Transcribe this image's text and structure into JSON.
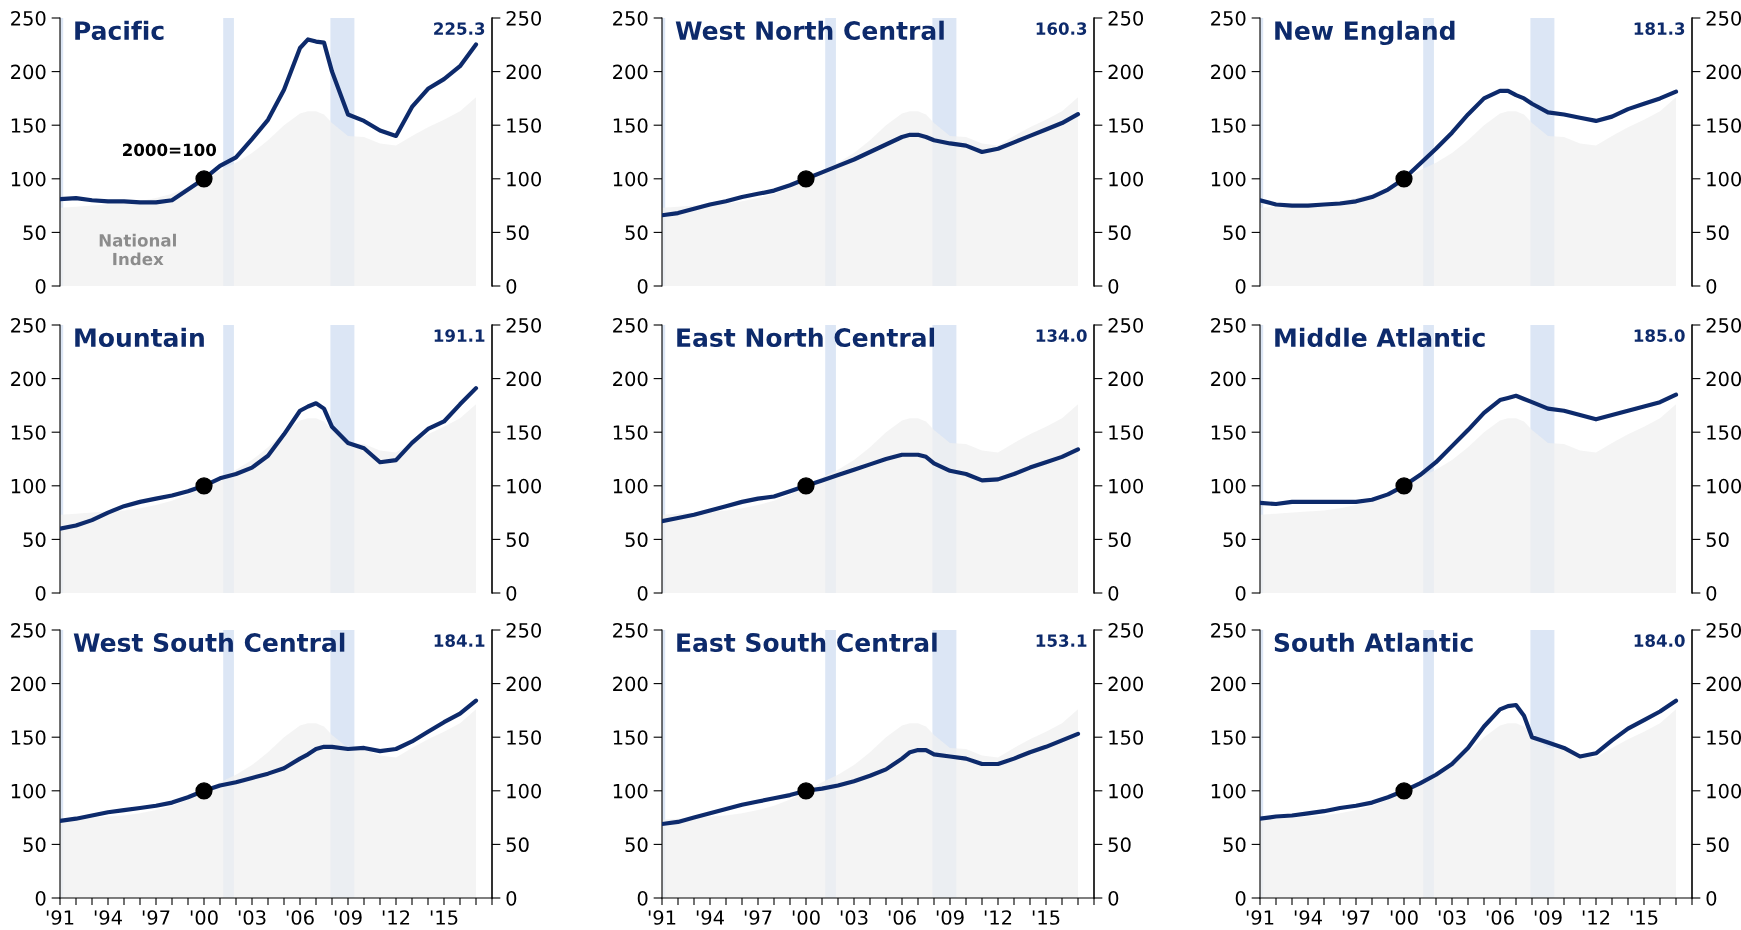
{
  "chart_data": [
    {
      "type": "line",
      "title": "Pacific",
      "x": [
        1991,
        1992,
        1993,
        1994,
        1995,
        1996,
        1997,
        1998,
        1999,
        2000,
        2001,
        2002,
        2003,
        2004,
        2005,
        2006,
        2006.5,
        2007,
        2007.5,
        2008,
        2009,
        2010,
        2011,
        2012,
        2013,
        2014,
        2015,
        2016,
        2017
      ],
      "xlim": [
        1991,
        2018
      ],
      "ylim": [
        0,
        250
      ],
      "yticks": [
        0,
        50,
        100,
        150,
        200,
        250
      ],
      "y2lim": [
        0,
        250
      ],
      "y2ticks": [
        0,
        50,
        100,
        150,
        200,
        250
      ],
      "tick_labels": "y",
      "series": [
        {
          "type": "area",
          "name": "National Index",
          "color": "#f0f0f0",
          "values": [
            73,
            74,
            75,
            76,
            77,
            79,
            82,
            86,
            92,
            100,
            108,
            115,
            124,
            136,
            150,
            161,
            163,
            163,
            160,
            152,
            140,
            139,
            133,
            131,
            140,
            148,
            155,
            163,
            176
          ]
        },
        {
          "type": "line",
          "color": "#0d2a6b",
          "values": [
            81,
            82,
            80,
            79,
            79,
            78,
            78,
            80,
            90,
            100,
            112,
            120,
            137,
            155,
            183,
            222,
            230,
            228,
            227,
            200,
            160,
            154,
            145,
            140,
            167,
            184,
            193,
            205,
            225.3
          ]
        },
        {
          "type": "scatter",
          "color": "#000000",
          "marker": "circle",
          "values": [
            null,
            null,
            null,
            null,
            null,
            null,
            null,
            null,
            null,
            100,
            null,
            null,
            null,
            null,
            null,
            null,
            null,
            null,
            null,
            null,
            null,
            null,
            null,
            null,
            null,
            null,
            null,
            null,
            null
          ]
        }
      ],
      "bands": [
        {
          "axis": "x",
          "from": 1991,
          "to": 1991.2,
          "color": "#dce6f5"
        },
        {
          "axis": "x",
          "from": 2001.2,
          "to": 2001.87,
          "color": "#dce6f5"
        },
        {
          "axis": "x",
          "from": 2007.9,
          "to": 2009.4,
          "color": "#dce6f5"
        }
      ],
      "annotations": [
        "225.3",
        {
          "text": "2000=100",
          "x": 2000,
          "y": 100
        }
      ]
    },
    {
      "type": "line",
      "title": "West North Central",
      "x": [
        1991,
        1992,
        1993,
        1994,
        1995,
        1996,
        1997,
        1998,
        1999,
        2000,
        2001,
        2002,
        2003,
        2004,
        2005,
        2006,
        2006.5,
        2007,
        2007.5,
        2008,
        2009,
        2010,
        2011,
        2012,
        2013,
        2014,
        2015,
        2016,
        2017
      ],
      "xlim": [
        1991,
        2018
      ],
      "ylim": [
        0,
        250
      ],
      "yticks": [
        0,
        50,
        100,
        150,
        200,
        250
      ],
      "y2lim": [
        0,
        250
      ],
      "y2ticks": [
        0,
        50,
        100,
        150,
        200,
        250
      ],
      "tick_labels": "y",
      "series": [
        {
          "type": "area",
          "color": "#f0f0f0",
          "values": [
            73,
            74,
            75,
            76,
            77,
            79,
            82,
            86,
            92,
            100,
            108,
            115,
            124,
            136,
            150,
            161,
            163,
            163,
            160,
            152,
            140,
            139,
            133,
            131,
            140,
            148,
            155,
            163,
            176
          ]
        },
        {
          "type": "line",
          "color": "#0d2a6b",
          "values": [
            66,
            68,
            72,
            76,
            79,
            83,
            86,
            89,
            94,
            100,
            106,
            112,
            118,
            125,
            132,
            139,
            141,
            141,
            139,
            136,
            133,
            131,
            125,
            128,
            134,
            140,
            146,
            152,
            160.3
          ]
        },
        {
          "type": "scatter",
          "color": "#000000",
          "marker": "circle",
          "values": [
            null,
            null,
            null,
            null,
            null,
            null,
            null,
            null,
            null,
            100,
            null,
            null,
            null,
            null,
            null,
            null,
            null,
            null,
            null,
            null,
            null,
            null,
            null,
            null,
            null,
            null,
            null,
            null,
            null
          ]
        }
      ],
      "bands": [
        {
          "axis": "x",
          "from": 1991,
          "to": 1991.2,
          "color": "#dce6f5"
        },
        {
          "axis": "x",
          "from": 2001.2,
          "to": 2001.87,
          "color": "#dce6f5"
        },
        {
          "axis": "x",
          "from": 2007.9,
          "to": 2009.4,
          "color": "#dce6f5"
        }
      ],
      "annotations": [
        "160.3"
      ]
    },
    {
      "type": "line",
      "title": "New England",
      "x": [
        1991,
        1992,
        1993,
        1994,
        1995,
        1996,
        1997,
        1998,
        1999,
        2000,
        2001,
        2002,
        2003,
        2004,
        2005,
        2006,
        2006.5,
        2007,
        2007.5,
        2008,
        2009,
        2010,
        2011,
        2012,
        2013,
        2014,
        2015,
        2016,
        2017
      ],
      "xlim": [
        1991,
        2018
      ],
      "ylim": [
        0,
        250
      ],
      "yticks": [
        0,
        50,
        100,
        150,
        200,
        250
      ],
      "y2lim": [
        0,
        250
      ],
      "y2ticks": [
        0,
        50,
        100,
        150,
        200,
        250
      ],
      "tick_labels": "y",
      "series": [
        {
          "type": "area",
          "color": "#f0f0f0",
          "values": [
            73,
            74,
            75,
            76,
            77,
            79,
            82,
            86,
            92,
            100,
            108,
            115,
            124,
            136,
            150,
            161,
            163,
            163,
            160,
            152,
            140,
            139,
            133,
            131,
            140,
            148,
            155,
            163,
            176
          ]
        },
        {
          "type": "line",
          "color": "#0d2a6b",
          "values": [
            80,
            76,
            75,
            75,
            76,
            77,
            79,
            83,
            90,
            100,
            114,
            128,
            143,
            160,
            175,
            182,
            182,
            178,
            175,
            170,
            162,
            160,
            157,
            154,
            158,
            165,
            170,
            175,
            181.3
          ]
        },
        {
          "type": "scatter",
          "color": "#000000",
          "marker": "circle",
          "values": [
            null,
            null,
            null,
            null,
            null,
            null,
            null,
            null,
            null,
            100,
            null,
            null,
            null,
            null,
            null,
            null,
            null,
            null,
            null,
            null,
            null,
            null,
            null,
            null,
            null,
            null,
            null,
            null,
            null
          ]
        }
      ],
      "bands": [
        {
          "axis": "x",
          "from": 1991,
          "to": 1991.2,
          "color": "#dce6f5"
        },
        {
          "axis": "x",
          "from": 2001.2,
          "to": 2001.87,
          "color": "#dce6f5"
        },
        {
          "axis": "x",
          "from": 2007.9,
          "to": 2009.4,
          "color": "#dce6f5"
        }
      ],
      "annotations": [
        "181.3"
      ]
    },
    {
      "type": "line",
      "title": "Mountain",
      "x": [
        1991,
        1992,
        1993,
        1994,
        1995,
        1996,
        1997,
        1998,
        1999,
        2000,
        2001,
        2002,
        2003,
        2004,
        2005,
        2006,
        2006.5,
        2007,
        2007.5,
        2008,
        2009,
        2010,
        2011,
        2012,
        2013,
        2014,
        2015,
        2016,
        2017
      ],
      "xlim": [
        1991,
        2018
      ],
      "ylim": [
        0,
        250
      ],
      "yticks": [
        0,
        50,
        100,
        150,
        200,
        250
      ],
      "y2lim": [
        0,
        250
      ],
      "y2ticks": [
        0,
        50,
        100,
        150,
        200,
        250
      ],
      "tick_labels": "y",
      "series": [
        {
          "type": "area",
          "color": "#f0f0f0",
          "values": [
            73,
            74,
            75,
            76,
            77,
            79,
            82,
            86,
            92,
            100,
            108,
            115,
            124,
            136,
            150,
            161,
            163,
            163,
            160,
            152,
            140,
            139,
            133,
            131,
            140,
            148,
            155,
            163,
            176
          ]
        },
        {
          "type": "line",
          "color": "#0d2a6b",
          "values": [
            60,
            63,
            68,
            75,
            81,
            85,
            88,
            91,
            95,
            100,
            107,
            111,
            117,
            128,
            148,
            170,
            174,
            177,
            172,
            155,
            140,
            135,
            122,
            124,
            140,
            153,
            160,
            176,
            191.1
          ]
        },
        {
          "type": "scatter",
          "color": "#000000",
          "marker": "circle",
          "values": [
            null,
            null,
            null,
            null,
            null,
            null,
            null,
            null,
            null,
            100,
            null,
            null,
            null,
            null,
            null,
            null,
            null,
            null,
            null,
            null,
            null,
            null,
            null,
            null,
            null,
            null,
            null,
            null,
            null
          ]
        }
      ],
      "bands": [
        {
          "axis": "x",
          "from": 1991,
          "to": 1991.2,
          "color": "#dce6f5"
        },
        {
          "axis": "x",
          "from": 2001.2,
          "to": 2001.87,
          "color": "#dce6f5"
        },
        {
          "axis": "x",
          "from": 2007.9,
          "to": 2009.4,
          "color": "#dce6f5"
        }
      ],
      "annotations": [
        "191.1"
      ]
    },
    {
      "type": "line",
      "title": "East North Central",
      "x": [
        1991,
        1992,
        1993,
        1994,
        1995,
        1996,
        1997,
        1998,
        1999,
        2000,
        2001,
        2002,
        2003,
        2004,
        2005,
        2006,
        2006.5,
        2007,
        2007.5,
        2008,
        2009,
        2010,
        2011,
        2012,
        2013,
        2014,
        2015,
        2016,
        2017
      ],
      "xlim": [
        1991,
        2018
      ],
      "ylim": [
        0,
        250
      ],
      "yticks": [
        0,
        50,
        100,
        150,
        200,
        250
      ],
      "y2lim": [
        0,
        250
      ],
      "y2ticks": [
        0,
        50,
        100,
        150,
        200,
        250
      ],
      "tick_labels": "y",
      "series": [
        {
          "type": "area",
          "color": "#f0f0f0",
          "values": [
            73,
            74,
            75,
            76,
            77,
            79,
            82,
            86,
            92,
            100,
            108,
            115,
            124,
            136,
            150,
            161,
            163,
            163,
            160,
            152,
            140,
            139,
            133,
            131,
            140,
            148,
            155,
            163,
            176
          ]
        },
        {
          "type": "line",
          "color": "#0d2a6b",
          "values": [
            67,
            70,
            73,
            77,
            81,
            85,
            88,
            90,
            95,
            100,
            105,
            110,
            115,
            120,
            125,
            129,
            129,
            129,
            127,
            121,
            114,
            111,
            105,
            106,
            111,
            117,
            122,
            127,
            134.0
          ]
        },
        {
          "type": "scatter",
          "color": "#000000",
          "marker": "circle",
          "values": [
            null,
            null,
            null,
            null,
            null,
            null,
            null,
            null,
            null,
            100,
            null,
            null,
            null,
            null,
            null,
            null,
            null,
            null,
            null,
            null,
            null,
            null,
            null,
            null,
            null,
            null,
            null,
            null,
            null
          ]
        }
      ],
      "bands": [
        {
          "axis": "x",
          "from": 1991,
          "to": 1991.2,
          "color": "#dce6f5"
        },
        {
          "axis": "x",
          "from": 2001.2,
          "to": 2001.87,
          "color": "#dce6f5"
        },
        {
          "axis": "x",
          "from": 2007.9,
          "to": 2009.4,
          "color": "#dce6f5"
        }
      ],
      "annotations": [
        "134.0"
      ]
    },
    {
      "type": "line",
      "title": "Middle Atlantic",
      "x": [
        1991,
        1992,
        1993,
        1994,
        1995,
        1996,
        1997,
        1998,
        1999,
        2000,
        2001,
        2002,
        2003,
        2004,
        2005,
        2006,
        2006.5,
        2007,
        2007.5,
        2008,
        2009,
        2010,
        2011,
        2012,
        2013,
        2014,
        2015,
        2016,
        2017
      ],
      "xlim": [
        1991,
        2018
      ],
      "ylim": [
        0,
        250
      ],
      "yticks": [
        0,
        50,
        100,
        150,
        200,
        250
      ],
      "y2lim": [
        0,
        250
      ],
      "y2ticks": [
        0,
        50,
        100,
        150,
        200,
        250
      ],
      "tick_labels": "y",
      "series": [
        {
          "type": "area",
          "color": "#f0f0f0",
          "values": [
            73,
            74,
            75,
            76,
            77,
            79,
            82,
            86,
            92,
            100,
            108,
            115,
            124,
            136,
            150,
            161,
            163,
            163,
            160,
            152,
            140,
            139,
            133,
            131,
            140,
            148,
            155,
            163,
            176
          ]
        },
        {
          "type": "line",
          "color": "#0d2a6b",
          "values": [
            84,
            83,
            85,
            85,
            85,
            85,
            85,
            87,
            92,
            100,
            110,
            122,
            137,
            152,
            168,
            180,
            182,
            184,
            181,
            178,
            172,
            170,
            166,
            162,
            166,
            170,
            174,
            178,
            185.0
          ]
        },
        {
          "type": "scatter",
          "color": "#000000",
          "marker": "circle",
          "values": [
            null,
            null,
            null,
            null,
            null,
            null,
            null,
            null,
            null,
            100,
            null,
            null,
            null,
            null,
            null,
            null,
            null,
            null,
            null,
            null,
            null,
            null,
            null,
            null,
            null,
            null,
            null,
            null,
            null
          ]
        }
      ],
      "bands": [
        {
          "axis": "x",
          "from": 1991,
          "to": 1991.2,
          "color": "#dce6f5"
        },
        {
          "axis": "x",
          "from": 2001.2,
          "to": 2001.87,
          "color": "#dce6f5"
        },
        {
          "axis": "x",
          "from": 2007.9,
          "to": 2009.4,
          "color": "#dce6f5"
        }
      ],
      "annotations": [
        "185.0"
      ]
    },
    {
      "type": "line",
      "title": "West South Central",
      "x": [
        1991,
        1992,
        1993,
        1994,
        1995,
        1996,
        1997,
        1998,
        1999,
        2000,
        2001,
        2002,
        2003,
        2004,
        2005,
        2006,
        2006.5,
        2007,
        2007.5,
        2008,
        2009,
        2010,
        2011,
        2012,
        2013,
        2014,
        2015,
        2016,
        2017
      ],
      "xlim": [
        1991,
        2018
      ],
      "xticks": [
        {
          "value": 1991,
          "label": "'91"
        },
        {
          "value": 1992,
          "label": null
        },
        {
          "value": 1993,
          "label": null
        },
        {
          "value": 1994,
          "label": "'94"
        },
        {
          "value": 1995,
          "label": null
        },
        {
          "value": 1996,
          "label": null
        },
        {
          "value": 1997,
          "label": "'97"
        },
        {
          "value": 1998,
          "label": null
        },
        {
          "value": 1999,
          "label": null
        },
        {
          "value": 2000,
          "label": "'00"
        },
        {
          "value": 2001,
          "label": null
        },
        {
          "value": 2002,
          "label": null
        },
        {
          "value": 2003,
          "label": "'03"
        },
        {
          "value": 2004,
          "label": null
        },
        {
          "value": 2005,
          "label": null
        },
        {
          "value": 2006,
          "label": "'06"
        },
        {
          "value": 2007,
          "label": null
        },
        {
          "value": 2008,
          "label": null
        },
        {
          "value": 2009,
          "label": "'09"
        },
        {
          "value": 2010,
          "label": null
        },
        {
          "value": 2011,
          "label": null
        },
        {
          "value": 2012,
          "label": "'12"
        },
        {
          "value": 2013,
          "label": null
        },
        {
          "value": 2014,
          "label": null
        },
        {
          "value": 2015,
          "label": "'15"
        },
        {
          "value": 2016,
          "label": null
        },
        {
          "value": 2017,
          "label": null
        },
        {
          "value": 2018,
          "label": null
        }
      ],
      "ylim": [
        0,
        250
      ],
      "yticks": [
        0,
        50,
        100,
        150,
        200,
        250
      ],
      "y2lim": [
        0,
        250
      ],
      "y2ticks": [
        0,
        50,
        100,
        150,
        200,
        250
      ],
      "series": [
        {
          "type": "area",
          "color": "#f0f0f0",
          "values": [
            73,
            74,
            75,
            76,
            77,
            79,
            82,
            86,
            92,
            100,
            108,
            115,
            124,
            136,
            150,
            161,
            163,
            163,
            160,
            152,
            140,
            139,
            133,
            131,
            140,
            148,
            155,
            163,
            176
          ]
        },
        {
          "type": "line",
          "color": "#0d2a6b",
          "values": [
            72,
            74,
            77,
            80,
            82,
            84,
            86,
            89,
            94,
            100,
            105,
            108,
            112,
            116,
            121,
            130,
            134,
            139,
            141,
            141,
            139,
            140,
            137,
            139,
            146,
            155,
            164,
            172,
            184.1
          ]
        },
        {
          "type": "scatter",
          "color": "#000000",
          "marker": "circle",
          "values": [
            null,
            null,
            null,
            null,
            null,
            null,
            null,
            null,
            null,
            100,
            null,
            null,
            null,
            null,
            null,
            null,
            null,
            null,
            null,
            null,
            null,
            null,
            null,
            null,
            null,
            null,
            null,
            null,
            null
          ]
        }
      ],
      "bands": [
        {
          "axis": "x",
          "from": 1991,
          "to": 1991.2,
          "color": "#dce6f5"
        },
        {
          "axis": "x",
          "from": 2001.2,
          "to": 2001.87,
          "color": "#dce6f5"
        },
        {
          "axis": "x",
          "from": 2007.9,
          "to": 2009.4,
          "color": "#dce6f5"
        }
      ],
      "annotations": [
        "184.1"
      ]
    },
    {
      "type": "line",
      "title": "East South Central",
      "x": [
        1991,
        1992,
        1993,
        1994,
        1995,
        1996,
        1997,
        1998,
        1999,
        2000,
        2001,
        2002,
        2003,
        2004,
        2005,
        2006,
        2006.5,
        2007,
        2007.5,
        2008,
        2009,
        2010,
        2011,
        2012,
        2013,
        2014,
        2015,
        2016,
        2017
      ],
      "xlim": [
        1991,
        2018
      ],
      "xticks": [
        {
          "value": 1991,
          "label": "'91"
        },
        {
          "value": 1992,
          "label": null
        },
        {
          "value": 1993,
          "label": null
        },
        {
          "value": 1994,
          "label": "'94"
        },
        {
          "value": 1995,
          "label": null
        },
        {
          "value": 1996,
          "label": null
        },
        {
          "value": 1997,
          "label": "'97"
        },
        {
          "value": 1998,
          "label": null
        },
        {
          "value": 1999,
          "label": null
        },
        {
          "value": 2000,
          "label": "'00"
        },
        {
          "value": 2001,
          "label": null
        },
        {
          "value": 2002,
          "label": null
        },
        {
          "value": 2003,
          "label": "'03"
        },
        {
          "value": 2004,
          "label": null
        },
        {
          "value": 2005,
          "label": null
        },
        {
          "value": 2006,
          "label": "'06"
        },
        {
          "value": 2007,
          "label": null
        },
        {
          "value": 2008,
          "label": null
        },
        {
          "value": 2009,
          "label": "'09"
        },
        {
          "value": 2010,
          "label": null
        },
        {
          "value": 2011,
          "label": null
        },
        {
          "value": 2012,
          "label": "'12"
        },
        {
          "value": 2013,
          "label": null
        },
        {
          "value": 2014,
          "label": null
        },
        {
          "value": 2015,
          "label": "'15"
        },
        {
          "value": 2016,
          "label": null
        },
        {
          "value": 2017,
          "label": null
        },
        {
          "value": 2018,
          "label": null
        }
      ],
      "ylim": [
        0,
        250
      ],
      "yticks": [
        0,
        50,
        100,
        150,
        200,
        250
      ],
      "y2lim": [
        0,
        250
      ],
      "y2ticks": [
        0,
        50,
        100,
        150,
        200,
        250
      ],
      "series": [
        {
          "type": "area",
          "color": "#f0f0f0",
          "values": [
            73,
            74,
            75,
            76,
            77,
            79,
            82,
            86,
            92,
            100,
            108,
            115,
            124,
            136,
            150,
            161,
            163,
            163,
            160,
            152,
            140,
            139,
            133,
            131,
            140,
            148,
            155,
            163,
            176
          ]
        },
        {
          "type": "line",
          "color": "#0d2a6b",
          "values": [
            69,
            71,
            75,
            79,
            83,
            87,
            90,
            93,
            96,
            100,
            102,
            105,
            109,
            114,
            120,
            130,
            136,
            138,
            138,
            134,
            132,
            130,
            125,
            125,
            130,
            136,
            141,
            147,
            153.1
          ]
        },
        {
          "type": "scatter",
          "color": "#000000",
          "marker": "circle",
          "values": [
            null,
            null,
            null,
            null,
            null,
            null,
            null,
            null,
            null,
            100,
            null,
            null,
            null,
            null,
            null,
            null,
            null,
            null,
            null,
            null,
            null,
            null,
            null,
            null,
            null,
            null,
            null,
            null,
            null
          ]
        }
      ],
      "bands": [
        {
          "axis": "x",
          "from": 1991,
          "to": 1991.2,
          "color": "#dce6f5"
        },
        {
          "axis": "x",
          "from": 2001.2,
          "to": 2001.87,
          "color": "#dce6f5"
        },
        {
          "axis": "x",
          "from": 2007.9,
          "to": 2009.4,
          "color": "#dce6f5"
        }
      ],
      "annotations": [
        "153.1"
      ]
    },
    {
      "type": "line",
      "title": "South Atlantic",
      "x": [
        1991,
        1992,
        1993,
        1994,
        1995,
        1996,
        1997,
        1998,
        1999,
        2000,
        2001,
        2002,
        2003,
        2004,
        2005,
        2006,
        2006.5,
        2007,
        2007.5,
        2008,
        2009,
        2010,
        2011,
        2012,
        2013,
        2014,
        2015,
        2016,
        2017
      ],
      "xlim": [
        1991,
        2018
      ],
      "xticks": [
        {
          "value": 1991,
          "label": "'91"
        },
        {
          "value": 1992,
          "label": null
        },
        {
          "value": 1993,
          "label": null
        },
        {
          "value": 1994,
          "label": "'94"
        },
        {
          "value": 1995,
          "label": null
        },
        {
          "value": 1996,
          "label": null
        },
        {
          "value": 1997,
          "label": "'97"
        },
        {
          "value": 1998,
          "label": null
        },
        {
          "value": 1999,
          "label": null
        },
        {
          "value": 2000,
          "label": "'00"
        },
        {
          "value": 2001,
          "label": null
        },
        {
          "value": 2002,
          "label": null
        },
        {
          "value": 2003,
          "label": "'03"
        },
        {
          "value": 2004,
          "label": null
        },
        {
          "value": 2005,
          "label": null
        },
        {
          "value": 2006,
          "label": "'06"
        },
        {
          "value": 2007,
          "label": null
        },
        {
          "value": 2008,
          "label": null
        },
        {
          "value": 2009,
          "label": "'09"
        },
        {
          "value": 2010,
          "label": null
        },
        {
          "value": 2011,
          "label": null
        },
        {
          "value": 2012,
          "label": "'12"
        },
        {
          "value": 2013,
          "label": null
        },
        {
          "value": 2014,
          "label": null
        },
        {
          "value": 2015,
          "label": "'15"
        },
        {
          "value": 2016,
          "label": null
        },
        {
          "value": 2017,
          "label": null
        },
        {
          "value": 2018,
          "label": null
        }
      ],
      "ylim": [
        0,
        250
      ],
      "yticks": [
        0,
        50,
        100,
        150,
        200,
        250
      ],
      "y2lim": [
        0,
        250
      ],
      "y2ticks": [
        0,
        50,
        100,
        150,
        200,
        250
      ],
      "series": [
        {
          "type": "area",
          "color": "#f0f0f0",
          "values": [
            73,
            74,
            75,
            76,
            77,
            79,
            82,
            86,
            92,
            100,
            108,
            115,
            124,
            136,
            150,
            161,
            163,
            163,
            160,
            152,
            140,
            139,
            133,
            131,
            140,
            148,
            155,
            163,
            176
          ]
        },
        {
          "type": "line",
          "color": "#0d2a6b",
          "values": [
            74,
            76,
            77,
            79,
            81,
            84,
            86,
            89,
            94,
            100,
            107,
            115,
            125,
            140,
            160,
            176,
            179,
            180,
            170,
            150,
            145,
            140,
            132,
            135,
            147,
            158,
            166,
            174,
            184.0
          ]
        },
        {
          "type": "scatter",
          "color": "#000000",
          "marker": "circle",
          "values": [
            null,
            null,
            null,
            null,
            null,
            null,
            null,
            null,
            null,
            100,
            null,
            null,
            null,
            null,
            null,
            null,
            null,
            null,
            null,
            null,
            null,
            null,
            null,
            null,
            null,
            null,
            null,
            null,
            null
          ]
        }
      ],
      "bands": [
        {
          "axis": "x",
          "from": 1991,
          "to": 1991.2,
          "color": "#dce6f5"
        },
        {
          "axis": "x",
          "from": 2001.2,
          "to": 2001.87,
          "color": "#dce6f5"
        },
        {
          "axis": "x",
          "from": 2007.9,
          "to": 2009.4,
          "color": "#dce6f5"
        }
      ],
      "annotations": [
        "184.0"
      ]
    }
  ]
}
